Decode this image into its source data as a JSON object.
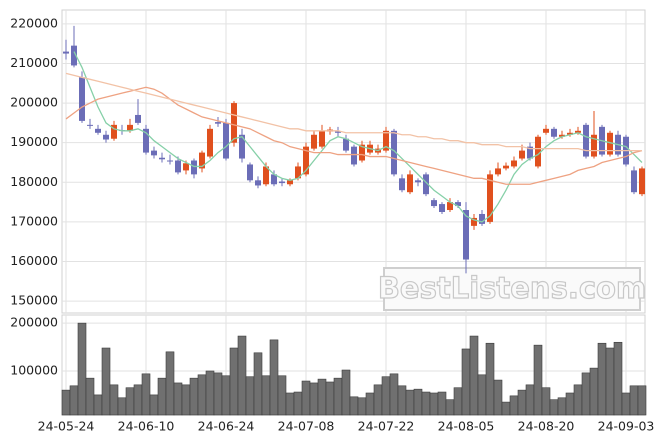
{
  "chart_data": [
    {
      "type": "candlestick",
      "open": [
        213000,
        214500,
        206500,
        194500,
        193500,
        192000,
        191000,
        193200,
        193000,
        197000,
        193500,
        188000,
        186200,
        185500,
        185500,
        183000,
        185500,
        183500,
        186500,
        195200,
        195000,
        190000,
        192000,
        184500,
        180500,
        179500,
        182000,
        180200,
        179500,
        181000,
        182000,
        188500,
        189000,
        192800,
        192800,
        191000,
        189000,
        185500,
        187500,
        187500,
        188000,
        193000,
        181000,
        177500,
        180500,
        182000,
        175500,
        174500,
        173000,
        175000,
        173000,
        169000,
        172000,
        170000,
        182000,
        183500,
        184000,
        186000,
        189000,
        184000,
        192500,
        193500,
        191500,
        192000,
        192500,
        194500,
        186500,
        194000,
        187000,
        192000,
        191500,
        183000,
        177000
      ],
      "high": [
        216000,
        219500,
        208000,
        196000,
        194500,
        193000,
        195500,
        194500,
        196000,
        201000,
        194500,
        189000,
        187500,
        187000,
        186500,
        185500,
        186000,
        188000,
        194500,
        196500,
        196000,
        200500,
        193500,
        185000,
        181500,
        185000,
        183000,
        181000,
        181000,
        185000,
        190000,
        193000,
        194500,
        194000,
        194000,
        192000,
        189500,
        190500,
        190500,
        189500,
        194000,
        193500,
        182000,
        183000,
        181000,
        182500,
        176000,
        175000,
        176000,
        175500,
        175000,
        172000,
        173000,
        183000,
        185000,
        185000,
        186500,
        189500,
        190000,
        192000,
        194500,
        194000,
        193000,
        193500,
        194000,
        195000,
        198000,
        194500,
        193000,
        193000,
        192000,
        184000,
        184000
      ],
      "low": [
        211000,
        209000,
        195000,
        193500,
        192000,
        190000,
        190500,
        192000,
        192500,
        194500,
        187000,
        186000,
        185000,
        184500,
        182000,
        182000,
        181000,
        182500,
        186000,
        194000,
        185500,
        189000,
        185000,
        180000,
        178500,
        179000,
        179000,
        179000,
        179000,
        180500,
        181500,
        188000,
        188500,
        192000,
        191500,
        187500,
        184000,
        185000,
        187000,
        187000,
        187500,
        181500,
        177500,
        177000,
        179000,
        176500,
        173500,
        172000,
        172500,
        173500,
        157000,
        168000,
        169000,
        169500,
        181500,
        183000,
        183500,
        185500,
        185500,
        183500,
        192000,
        191000,
        191000,
        191500,
        192000,
        186000,
        186000,
        186500,
        186500,
        186500,
        184000,
        177000,
        176500
      ],
      "close": [
        212500,
        209500,
        195500,
        194300,
        192500,
        190800,
        194500,
        193000,
        194500,
        195000,
        187500,
        186800,
        185800,
        185300,
        182500,
        184800,
        182000,
        187500,
        193500,
        194800,
        186000,
        200000,
        186000,
        180500,
        179200,
        184000,
        179500,
        179800,
        180500,
        184000,
        189000,
        192000,
        193000,
        193300,
        192500,
        188000,
        184500,
        189500,
        189500,
        188500,
        193000,
        182000,
        178000,
        182000,
        180000,
        177000,
        174000,
        172500,
        175000,
        174000,
        160500,
        171000,
        169500,
        182000,
        183500,
        184200,
        185500,
        188000,
        186000,
        191500,
        193500,
        191500,
        192000,
        192500,
        193000,
        186500,
        192000,
        187000,
        192500,
        187000,
        184500,
        177500,
        183500
      ],
      "up_color": "#e0501e",
      "down_color": "#6b6db7",
      "lines": [
        {
          "color": "#86d0a8",
          "values": [
            null,
            213000,
            209000,
            204000,
            199000,
            195000,
            193500,
            193000,
            193000,
            193500,
            192500,
            190500,
            189000,
            187500,
            186000,
            185000,
            184000,
            184000,
            185500,
            187500,
            189000,
            191000,
            191500,
            189000,
            186500,
            184000,
            182000,
            181000,
            180500,
            181000,
            183000,
            185500,
            188000,
            190500,
            191500,
            191000,
            190000,
            189000,
            188500,
            188000,
            189000,
            188000,
            186000,
            184000,
            182000,
            180000,
            178000,
            176500,
            175000,
            174000,
            171500,
            170500,
            170000,
            171500,
            174500,
            178000,
            182000,
            184500,
            186000,
            187000,
            189000,
            190500,
            191500,
            192000,
            192500,
            191500,
            191000,
            190500,
            190000,
            189500,
            189000,
            187000,
            185000
          ]
        },
        {
          "color": "#eea282",
          "values": [
            196000,
            197500,
            199000,
            200000,
            201000,
            201500,
            202000,
            202500,
            203000,
            203500,
            204000,
            203500,
            202500,
            201000,
            199500,
            198500,
            197500,
            196500,
            196000,
            195500,
            195000,
            194500,
            194000,
            193500,
            192500,
            191500,
            190500,
            190000,
            189000,
            188500,
            188000,
            187500,
            187500,
            187500,
            187000,
            187000,
            187000,
            187000,
            186500,
            186500,
            186500,
            186000,
            185500,
            185000,
            184500,
            184000,
            183500,
            183000,
            182500,
            182000,
            181500,
            181000,
            181000,
            180500,
            180000,
            179500,
            179500,
            179500,
            179500,
            180000,
            180500,
            181000,
            181500,
            182000,
            183000,
            183500,
            184000,
            185000,
            185500,
            186000,
            186500,
            187500,
            188000
          ]
        },
        {
          "color": "#f2c2a6",
          "values": [
            207500,
            207000,
            206500,
            206000,
            205500,
            205000,
            204500,
            204000,
            203500,
            203000,
            202500,
            202000,
            201500,
            201000,
            200500,
            200000,
            199500,
            199000,
            198500,
            198000,
            197500,
            197000,
            196500,
            196000,
            195500,
            195000,
            194500,
            194000,
            193500,
            193500,
            193000,
            193000,
            193000,
            193000,
            193000,
            192500,
            192500,
            192500,
            192500,
            192500,
            192500,
            192500,
            192000,
            192000,
            191500,
            191500,
            191000,
            191000,
            190500,
            190500,
            190000,
            190000,
            189500,
            189500,
            189500,
            189000,
            189000,
            189000,
            188500,
            188500,
            188500,
            188500,
            188500,
            188500,
            188500,
            188000,
            188000,
            188000,
            188000,
            188000,
            188000,
            188000,
            188000
          ]
        }
      ],
      "ylim": [
        147000,
        223500
      ],
      "yticks": [
        150000,
        160000,
        170000,
        180000,
        190000,
        200000,
        210000,
        220000
      ],
      "grid": true,
      "watermark": "BestListens.com"
    },
    {
      "type": "bar",
      "categories": [
        "24-05-24",
        null,
        null,
        null,
        null,
        null,
        null,
        null,
        null,
        null,
        "24-06-10",
        null,
        null,
        null,
        null,
        null,
        null,
        null,
        null,
        null,
        "24-06-24",
        null,
        null,
        null,
        null,
        null,
        null,
        null,
        null,
        null,
        "24-07-08",
        null,
        null,
        null,
        null,
        null,
        null,
        null,
        null,
        null,
        "24-07-22",
        null,
        null,
        null,
        null,
        null,
        null,
        null,
        null,
        null,
        "24-08-05",
        null,
        null,
        null,
        null,
        null,
        null,
        null,
        null,
        null,
        "24-08-20",
        null,
        null,
        null,
        null,
        null,
        null,
        null,
        null,
        null,
        "24-09-03",
        null,
        null
      ],
      "values": [
        60000,
        69000,
        200000,
        85000,
        50000,
        148000,
        71000,
        44000,
        65000,
        71000,
        94000,
        50000,
        85000,
        140000,
        75000,
        71000,
        85000,
        92000,
        100000,
        96000,
        90000,
        148000,
        173000,
        88000,
        138000,
        90000,
        165000,
        90000,
        54000,
        56000,
        79000,
        75000,
        83000,
        77000,
        85000,
        102000,
        46000,
        44000,
        54000,
        71000,
        88000,
        94000,
        69000,
        60000,
        62000,
        56000,
        54000,
        56000,
        40000,
        65000,
        146000,
        173000,
        92000,
        158000,
        81000,
        35000,
        48000,
        60000,
        71000,
        154000,
        65000,
        40000,
        44000,
        54000,
        71000,
        96000,
        106000,
        158000,
        148000,
        160000,
        54000,
        69000,
        69000
      ],
      "color": "#707070",
      "ylim": [
        8000,
        217000
      ],
      "yticks": [
        100000,
        200000
      ],
      "grid": true
    }
  ]
}
